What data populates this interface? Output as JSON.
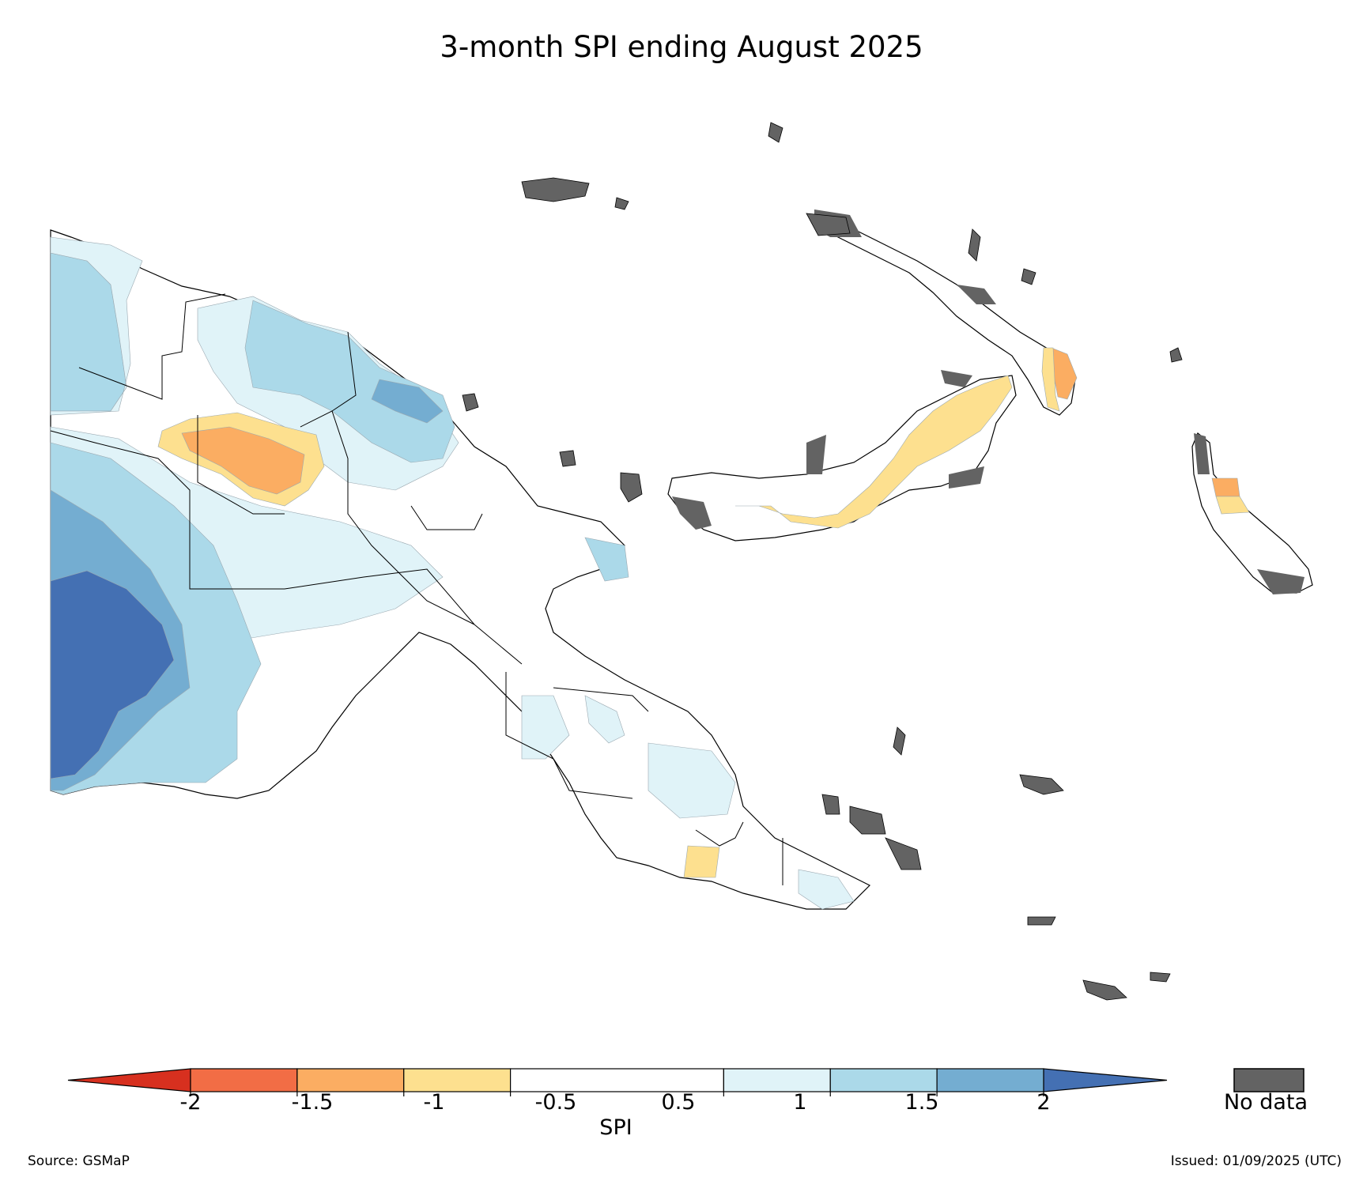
{
  "title": "3-month SPI ending August 2025",
  "colorbar": {
    "label": "SPI",
    "ticks": [
      "-2",
      "-1.5",
      "-1",
      "-0.5",
      "0.5",
      "1",
      "1.5",
      "2"
    ],
    "under_color": "#d7301f",
    "over_color": "#4470b3",
    "bins": [
      {
        "from": -2.0,
        "to": -1.5,
        "color": "#f26d45"
      },
      {
        "from": -1.5,
        "to": -1.0,
        "color": "#fbad62"
      },
      {
        "from": -1.0,
        "to": -0.5,
        "color": "#fde08f"
      },
      {
        "from": -0.5,
        "to": 0.5,
        "color": "#ffffff"
      },
      {
        "from": 0.5,
        "to": 1.0,
        "color": "#e0f3f8"
      },
      {
        "from": 1.0,
        "to": 1.5,
        "color": "#abd9e9"
      },
      {
        "from": 1.5,
        "to": 2.0,
        "color": "#74add1"
      }
    ]
  },
  "no_data": {
    "label": "No data",
    "color": "#636363"
  },
  "map_colors": {
    "outline": "#000000",
    "contour": "#9aa8b0"
  },
  "footer": {
    "source": "Source: GSMaP",
    "issued": "Issued: 01/09/2025 (UTC)"
  }
}
